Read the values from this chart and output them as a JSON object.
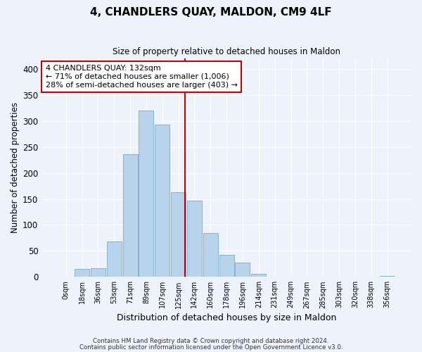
{
  "title": "4, CHANDLERS QUAY, MALDON, CM9 4LF",
  "subtitle": "Size of property relative to detached houses in Maldon",
  "xlabel": "Distribution of detached houses by size in Maldon",
  "ylabel": "Number of detached properties",
  "bar_labels": [
    "0sqm",
    "18sqm",
    "36sqm",
    "53sqm",
    "71sqm",
    "89sqm",
    "107sqm",
    "125sqm",
    "142sqm",
    "160sqm",
    "178sqm",
    "196sqm",
    "214sqm",
    "231sqm",
    "249sqm",
    "267sqm",
    "285sqm",
    "303sqm",
    "320sqm",
    "338sqm",
    "356sqm"
  ],
  "bar_values": [
    0,
    15,
    16,
    68,
    236,
    320,
    293,
    163,
    147,
    85,
    43,
    28,
    6,
    0,
    0,
    0,
    1,
    0,
    0,
    0,
    2
  ],
  "bar_color": "#b8d4ec",
  "bar_edge_color": "#7aaac8",
  "vline_color": "#cc0000",
  "annotation_text": "4 CHANDLERS QUAY: 132sqm\n← 71% of detached houses are smaller (1,006)\n28% of semi-detached houses are larger (403) →",
  "annotation_box_color": "#ffffff",
  "annotation_box_edge": "#cc0000",
  "ylim": [
    0,
    420
  ],
  "yticks": [
    0,
    50,
    100,
    150,
    200,
    250,
    300,
    350,
    400
  ],
  "footer_line1": "Contains HM Land Registry data © Crown copyright and database right 2024.",
  "footer_line2": "Contains public sector information licensed under the Open Government Licence v3.0.",
  "bg_color": "#eef2fa",
  "grid_color": "#ffffff"
}
